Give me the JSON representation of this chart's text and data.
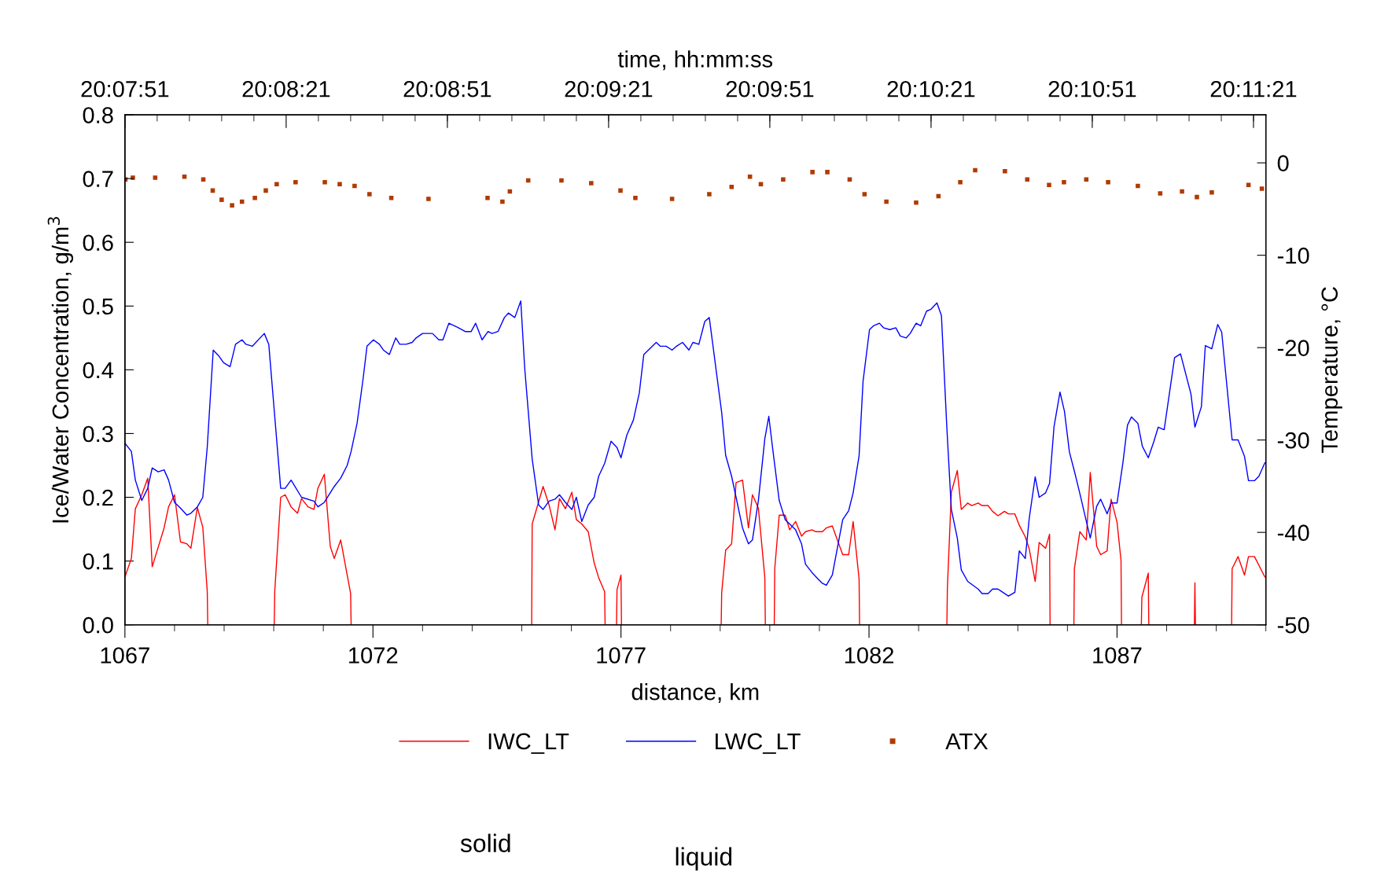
{
  "chart_data": {
    "type": "line",
    "xlabel": "distance, km",
    "x2label": "time, hh:mm:ss",
    "ylabel": "Ice/Water Concentration, g/m$^{3}$",
    "y2label": "Temperature, °C",
    "xlim": [
      1067,
      1090
    ],
    "xticks": [
      1067,
      1072,
      1077,
      1082,
      1087
    ],
    "x2lim": [
      20.130833,
      20.189806
    ],
    "x2ticks": [
      {
        "value": 20.130833,
        "label": "20:07:51"
      },
      {
        "value": 20.139167,
        "label": "20:08:21"
      },
      {
        "value": 20.1475,
        "label": "20:08:51"
      },
      {
        "value": 20.155833,
        "label": "20:09:21"
      },
      {
        "value": 20.164167,
        "label": "20:09:51"
      },
      {
        "value": 20.1725,
        "label": "20:10:21"
      },
      {
        "value": 20.180833,
        "label": "20:10:51"
      },
      {
        "value": 20.189167,
        "label": "20:11:21"
      }
    ],
    "ylim": [
      0,
      0.8
    ],
    "yticks": [
      {
        "value": 0,
        "label": "0.0"
      },
      {
        "value": 0.1,
        "label": "0.1"
      },
      {
        "value": 0.2,
        "label": "0.2"
      },
      {
        "value": 0.3,
        "label": "0.3"
      },
      {
        "value": 0.4,
        "label": "0.4"
      },
      {
        "value": 0.5,
        "label": "0.5"
      },
      {
        "value": 0.6,
        "label": "0.6"
      },
      {
        "value": 0.7,
        "label": "0.7"
      },
      {
        "value": 0.8,
        "label": "0.8"
      }
    ],
    "y2lim": [
      -50,
      5.2
    ],
    "y2ticks": [
      -50,
      -40,
      -30,
      -20,
      -10,
      0
    ],
    "grid": false,
    "legend": "bottom",
    "annotations": [
      "solid",
      "liquid"
    ],
    "series": [
      {
        "name": "IWC_LT",
        "type": "line",
        "color": "#ff0000",
        "x": [
          1067.0,
          1067.13,
          1067.21,
          1067.34,
          1067.46,
          1067.55,
          1067.79,
          1067.88,
          1068.0,
          1068.12,
          1068.25,
          1068.33,
          1068.46,
          1068.57,
          1068.66,
          1068.67,
          1070.01,
          1070.02,
          1070.14,
          1070.23,
          1070.35,
          1070.48,
          1070.56,
          1070.69,
          1070.81,
          1070.89,
          1071.02,
          1071.14,
          1071.22,
          1071.35,
          1071.55,
          1071.56,
          1075.2,
          1075.21,
          1075.43,
          1075.55,
          1075.67,
          1075.76,
          1075.88,
          1076.01,
          1076.1,
          1076.21,
          1076.34,
          1076.46,
          1076.55,
          1076.67,
          1076.68,
          1076.91,
          1076.92,
          1077.0,
          1077.01,
          1079.02,
          1079.03,
          1079.11,
          1079.23,
          1079.32,
          1079.45,
          1079.57,
          1079.65,
          1079.77,
          1079.9,
          1079.91,
          1080.09,
          1080.1,
          1080.19,
          1080.31,
          1080.4,
          1080.52,
          1080.64,
          1080.72,
          1080.85,
          1080.93,
          1081.06,
          1081.14,
          1081.26,
          1081.47,
          1081.59,
          1081.68,
          1081.8,
          1081.81,
          1083.57,
          1083.58,
          1083.66,
          1083.78,
          1083.86,
          1083.99,
          1084.07,
          1084.2,
          1084.28,
          1084.4,
          1084.49,
          1084.6,
          1084.73,
          1084.81,
          1084.94,
          1085.03,
          1085.15,
          1085.23,
          1085.35,
          1085.43,
          1085.56,
          1085.64,
          1085.65,
          1086.13,
          1086.14,
          1086.25,
          1086.38,
          1086.46,
          1086.59,
          1086.67,
          1086.8,
          1086.88,
          1087.0,
          1087.08,
          1087.09,
          1087.49,
          1087.5,
          1087.63,
          1087.64,
          1088.56,
          1088.57,
          1088.58,
          1089.31,
          1089.32,
          1089.44,
          1089.57,
          1089.65,
          1089.77,
          1089.98
        ],
        "values": [
          0.075,
          0.104,
          0.182,
          0.204,
          0.23,
          0.091,
          0.152,
          0.185,
          0.204,
          0.13,
          0.127,
          0.12,
          0.184,
          0.153,
          0.052,
          0,
          0,
          0.052,
          0.2,
          0.204,
          0.185,
          0.175,
          0.198,
          0.185,
          0.181,
          0.214,
          0.236,
          0.123,
          0.104,
          0.133,
          0.049,
          0,
          0,
          0.158,
          0.217,
          0.188,
          0.149,
          0.198,
          0.182,
          0.208,
          0.165,
          0.158,
          0.146,
          0.097,
          0.074,
          0.052,
          0,
          0,
          0.055,
          0.078,
          0,
          0,
          0.05,
          0.117,
          0.127,
          0.223,
          0.227,
          0.152,
          0.204,
          0.183,
          0.074,
          0,
          0,
          0.088,
          0.172,
          0.172,
          0.149,
          0.162,
          0.139,
          0.146,
          0.149,
          0.146,
          0.146,
          0.152,
          0.155,
          0.11,
          0.11,
          0.162,
          0.072,
          0,
          0,
          0.058,
          0.208,
          0.242,
          0.181,
          0.191,
          0.187,
          0.191,
          0.187,
          0.187,
          0.178,
          0.171,
          0.178,
          0.174,
          0.174,
          0.156,
          0.138,
          0.119,
          0.068,
          0.129,
          0.12,
          0.142,
          0,
          0,
          0.088,
          0.146,
          0.133,
          0.239,
          0.123,
          0.11,
          0.116,
          0.197,
          0.161,
          0.101,
          0,
          0,
          0.043,
          0.081,
          0,
          0,
          0.066,
          0,
          0,
          0.088,
          0.107,
          0.078,
          0.107,
          0.107,
          0.075
        ]
      },
      {
        "name": "LWC_LT",
        "type": "line",
        "color": "#0000ff",
        "x": [
          1067.0,
          1067.13,
          1067.21,
          1067.34,
          1067.46,
          1067.55,
          1067.67,
          1067.79,
          1067.88,
          1068.0,
          1068.12,
          1068.25,
          1068.33,
          1068.46,
          1068.57,
          1068.66,
          1068.78,
          1068.9,
          1068.99,
          1069.12,
          1069.23,
          1069.36,
          1069.44,
          1069.57,
          1069.81,
          1069.9,
          1070.14,
          1070.23,
          1070.35,
          1070.56,
          1070.81,
          1070.89,
          1071.02,
          1071.22,
          1071.35,
          1071.48,
          1071.56,
          1071.68,
          1071.8,
          1071.88,
          1072.01,
          1072.13,
          1072.21,
          1072.33,
          1072.46,
          1072.54,
          1072.67,
          1072.79,
          1072.87,
          1073.0,
          1073.2,
          1073.33,
          1073.41,
          1073.53,
          1073.7,
          1073.86,
          1073.98,
          1074.07,
          1074.2,
          1074.32,
          1074.4,
          1074.52,
          1074.65,
          1074.73,
          1074.86,
          1074.98,
          1075.06,
          1075.21,
          1075.34,
          1075.43,
          1075.55,
          1075.67,
          1075.76,
          1075.88,
          1076.01,
          1076.1,
          1076.21,
          1076.34,
          1076.46,
          1076.55,
          1076.67,
          1076.8,
          1076.92,
          1077.0,
          1077.12,
          1077.25,
          1077.37,
          1077.46,
          1077.71,
          1077.79,
          1077.91,
          1078.03,
          1078.12,
          1078.24,
          1078.37,
          1078.45,
          1078.57,
          1078.69,
          1078.78,
          1079.03,
          1079.11,
          1079.23,
          1079.32,
          1079.45,
          1079.57,
          1079.65,
          1079.77,
          1079.9,
          1079.98,
          1080.06,
          1080.19,
          1080.31,
          1080.52,
          1080.64,
          1080.72,
          1080.85,
          1080.97,
          1081.06,
          1081.14,
          1081.26,
          1081.47,
          1081.59,
          1081.68,
          1081.8,
          1081.88,
          1082.01,
          1082.09,
          1082.21,
          1082.29,
          1082.42,
          1082.54,
          1082.63,
          1082.75,
          1082.83,
          1082.95,
          1083.04,
          1083.16,
          1083.25,
          1083.37,
          1083.46,
          1083.57,
          1083.66,
          1083.78,
          1083.86,
          1083.99,
          1084.2,
          1084.28,
          1084.4,
          1084.49,
          1084.6,
          1084.81,
          1084.94,
          1085.03,
          1085.15,
          1085.23,
          1085.35,
          1085.43,
          1085.56,
          1085.64,
          1085.73,
          1085.85,
          1085.94,
          1086.04,
          1086.14,
          1086.25,
          1086.46,
          1086.59,
          1086.67,
          1086.8,
          1086.88,
          1087.0,
          1087.12,
          1087.21,
          1087.29,
          1087.42,
          1087.51,
          1087.63,
          1087.74,
          1087.83,
          1087.95,
          1088.16,
          1088.28,
          1088.49,
          1088.57,
          1088.7,
          1088.78,
          1088.91,
          1089.03,
          1089.11,
          1089.32,
          1089.44,
          1089.57,
          1089.65,
          1089.77,
          1089.86,
          1089.98
        ],
        "values": [
          0.285,
          0.272,
          0.227,
          0.195,
          0.214,
          0.246,
          0.24,
          0.243,
          0.227,
          0.192,
          0.183,
          0.172,
          0.175,
          0.185,
          0.2,
          0.279,
          0.431,
          0.421,
          0.411,
          0.405,
          0.44,
          0.447,
          0.44,
          0.437,
          0.457,
          0.44,
          0.214,
          0.214,
          0.227,
          0.2,
          0.194,
          0.185,
          0.192,
          0.217,
          0.23,
          0.25,
          0.272,
          0.316,
          0.385,
          0.437,
          0.447,
          0.44,
          0.431,
          0.424,
          0.45,
          0.44,
          0.44,
          0.443,
          0.45,
          0.457,
          0.457,
          0.447,
          0.447,
          0.473,
          0.467,
          0.46,
          0.46,
          0.473,
          0.447,
          0.46,
          0.457,
          0.46,
          0.482,
          0.489,
          0.482,
          0.508,
          0.402,
          0.26,
          0.188,
          0.181,
          0.194,
          0.197,
          0.204,
          0.192,
          0.181,
          0.2,
          0.162,
          0.188,
          0.2,
          0.233,
          0.253,
          0.288,
          0.278,
          0.262,
          0.298,
          0.321,
          0.364,
          0.424,
          0.443,
          0.437,
          0.437,
          0.431,
          0.437,
          0.443,
          0.431,
          0.443,
          0.44,
          0.476,
          0.482,
          0.333,
          0.266,
          0.233,
          0.2,
          0.152,
          0.127,
          0.133,
          0.195,
          0.292,
          0.327,
          0.275,
          0.195,
          0.165,
          0.149,
          0.127,
          0.095,
          0.082,
          0.072,
          0.065,
          0.062,
          0.078,
          0.165,
          0.179,
          0.207,
          0.265,
          0.382,
          0.463,
          0.469,
          0.473,
          0.466,
          0.463,
          0.466,
          0.453,
          0.45,
          0.457,
          0.473,
          0.469,
          0.492,
          0.495,
          0.505,
          0.485,
          0.308,
          0.181,
          0.136,
          0.086,
          0.068,
          0.056,
          0.049,
          0.049,
          0.056,
          0.056,
          0.045,
          0.051,
          0.116,
          0.104,
          0.167,
          0.232,
          0.2,
          0.207,
          0.222,
          0.311,
          0.365,
          0.335,
          0.271,
          0.241,
          0.206,
          0.136,
          0.186,
          0.197,
          0.174,
          0.191,
          0.191,
          0.255,
          0.313,
          0.326,
          0.316,
          0.28,
          0.262,
          0.287,
          0.31,
          0.306,
          0.419,
          0.425,
          0.362,
          0.31,
          0.342,
          0.438,
          0.433,
          0.471,
          0.459,
          0.29,
          0.29,
          0.264,
          0.226,
          0.226,
          0.233,
          0.254
        ]
      },
      {
        "name": "ATX",
        "type": "scatter",
        "axis": "y2",
        "marker": "square",
        "color": "#b03a00",
        "x": [
          1067.01,
          1067.16,
          1067.61,
          1068.2,
          1068.58,
          1068.77,
          1068.95,
          1069.16,
          1069.36,
          1069.62,
          1069.84,
          1070.06,
          1070.44,
          1071.03,
          1071.33,
          1071.63,
          1071.93,
          1072.37,
          1073.12,
          1074.31,
          1074.61,
          1074.76,
          1075.13,
          1075.8,
          1076.4,
          1076.99,
          1077.29,
          1078.03,
          1078.78,
          1079.23,
          1079.6,
          1079.82,
          1080.27,
          1080.86,
          1081.16,
          1081.61,
          1081.91,
          1082.35,
          1082.95,
          1083.4,
          1083.84,
          1084.14,
          1084.74,
          1085.19,
          1085.63,
          1085.93,
          1086.38,
          1086.82,
          1087.42,
          1087.87,
          1088.31,
          1088.61,
          1088.91,
          1089.65,
          1089.92
        ],
        "values": [
          -1.8,
          -1.6,
          -1.6,
          -1.5,
          -1.8,
          -3.0,
          -4.0,
          -4.6,
          -4.2,
          -3.8,
          -3.0,
          -2.3,
          -2.1,
          -2.1,
          -2.3,
          -2.5,
          -3.4,
          -3.8,
          -3.9,
          -3.8,
          -4.2,
          -3.1,
          -1.9,
          -1.9,
          -2.2,
          -3.0,
          -3.8,
          -3.9,
          -3.4,
          -2.6,
          -1.5,
          -2.3,
          -1.8,
          -1.0,
          -1.0,
          -1.8,
          -3.4,
          -4.2,
          -4.3,
          -3.6,
          -2.1,
          -0.8,
          -0.9,
          -1.8,
          -2.4,
          -2.1,
          -1.8,
          -2.1,
          -2.5,
          -3.3,
          -3.1,
          -3.7,
          -3.2,
          -2.4,
          -2.8
        ]
      }
    ]
  }
}
